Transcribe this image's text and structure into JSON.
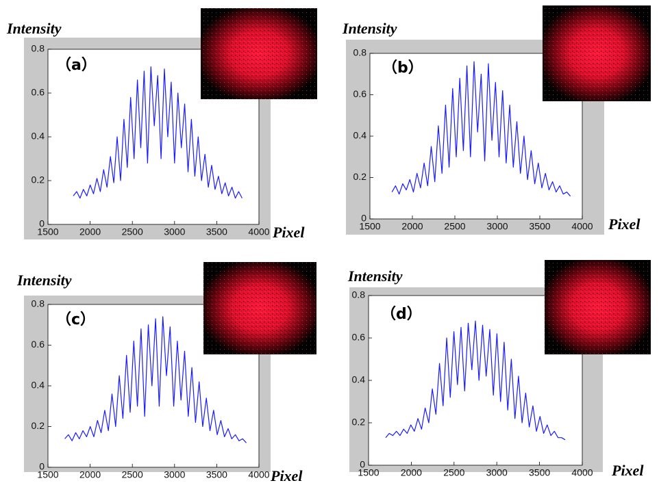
{
  "chart_data": [
    {
      "type": "line",
      "annotation": "（a）",
      "x_label": "Pixel",
      "y_label": "Intensity",
      "xlim": [
        1500,
        4000
      ],
      "ylim": [
        0,
        0.8
      ],
      "xticks": [
        1500,
        2000,
        2500,
        3000,
        3500,
        4000
      ],
      "yticks": [
        0,
        0.2,
        0.4,
        0.6,
        0.8
      ],
      "color": "#1a1aff",
      "x": [
        1800,
        1840,
        1880,
        1920,
        1960,
        2000,
        2040,
        2080,
        2120,
        2160,
        2200,
        2240,
        2280,
        2320,
        2360,
        2400,
        2440,
        2480,
        2520,
        2560,
        2600,
        2640,
        2680,
        2720,
        2760,
        2800,
        2840,
        2880,
        2920,
        2960,
        3000,
        3040,
        3080,
        3120,
        3160,
        3200,
        3240,
        3280,
        3320,
        3360,
        3400,
        3440,
        3480,
        3520,
        3560,
        3600,
        3640,
        3680,
        3720,
        3760,
        3800
      ],
      "values": [
        0.13,
        0.15,
        0.12,
        0.16,
        0.13,
        0.18,
        0.14,
        0.21,
        0.15,
        0.25,
        0.17,
        0.31,
        0.19,
        0.4,
        0.2,
        0.48,
        0.26,
        0.58,
        0.3,
        0.66,
        0.35,
        0.7,
        0.28,
        0.72,
        0.45,
        0.68,
        0.3,
        0.71,
        0.4,
        0.65,
        0.28,
        0.6,
        0.35,
        0.55,
        0.24,
        0.48,
        0.22,
        0.4,
        0.2,
        0.32,
        0.17,
        0.27,
        0.16,
        0.22,
        0.14,
        0.19,
        0.13,
        0.17,
        0.12,
        0.15,
        0.12
      ]
    },
    {
      "type": "line",
      "annotation": "（b）",
      "x_label": "Pixel",
      "y_label": "Intensity",
      "xlim": [
        1500,
        4000
      ],
      "ylim": [
        0,
        0.8
      ],
      "xticks": [
        1500,
        2000,
        2500,
        3000,
        3500,
        4000
      ],
      "yticks": [
        0,
        0.2,
        0.4,
        0.6,
        0.8
      ],
      "color": "#1a1aff",
      "x": [
        1760,
        1802,
        1844,
        1886,
        1928,
        1970,
        2012,
        2054,
        2096,
        2138,
        2180,
        2222,
        2264,
        2306,
        2348,
        2390,
        2432,
        2474,
        2516,
        2558,
        2600,
        2642,
        2684,
        2726,
        2768,
        2810,
        2852,
        2894,
        2936,
        2978,
        3020,
        3062,
        3104,
        3146,
        3188,
        3230,
        3272,
        3314,
        3356,
        3398,
        3440,
        3482,
        3524,
        3566,
        3608,
        3650,
        3692,
        3734,
        3776,
        3818,
        3860
      ],
      "values": [
        0.13,
        0.16,
        0.12,
        0.17,
        0.14,
        0.19,
        0.13,
        0.22,
        0.15,
        0.27,
        0.16,
        0.35,
        0.18,
        0.45,
        0.22,
        0.55,
        0.25,
        0.63,
        0.3,
        0.68,
        0.33,
        0.74,
        0.3,
        0.76,
        0.42,
        0.7,
        0.28,
        0.75,
        0.38,
        0.66,
        0.3,
        0.62,
        0.27,
        0.55,
        0.25,
        0.47,
        0.22,
        0.4,
        0.19,
        0.33,
        0.17,
        0.27,
        0.15,
        0.22,
        0.14,
        0.18,
        0.13,
        0.16,
        0.12,
        0.13,
        0.11
      ]
    },
    {
      "type": "line",
      "annotation": "（c）",
      "x_label": "Pixel",
      "y_label": "Intensity",
      "xlim": [
        1500,
        4000
      ],
      "ylim": [
        0,
        0.8
      ],
      "xticks": [
        1500,
        2000,
        2500,
        3000,
        3500,
        4000
      ],
      "yticks": [
        0,
        0.2,
        0.4,
        0.6,
        0.8
      ],
      "color": "#1a1aff",
      "x": [
        1700,
        1743,
        1786,
        1829,
        1872,
        1915,
        1958,
        2001,
        2044,
        2087,
        2130,
        2173,
        2216,
        2259,
        2302,
        2345,
        2388,
        2431,
        2474,
        2517,
        2560,
        2603,
        2646,
        2689,
        2732,
        2775,
        2818,
        2861,
        2904,
        2947,
        2990,
        3033,
        3076,
        3119,
        3162,
        3205,
        3248,
        3291,
        3334,
        3377,
        3420,
        3463,
        3506,
        3549,
        3592,
        3635,
        3678,
        3721,
        3764,
        3807,
        3850
      ],
      "values": [
        0.14,
        0.16,
        0.13,
        0.17,
        0.14,
        0.18,
        0.15,
        0.2,
        0.15,
        0.23,
        0.17,
        0.28,
        0.18,
        0.36,
        0.2,
        0.45,
        0.24,
        0.55,
        0.27,
        0.62,
        0.3,
        0.68,
        0.25,
        0.7,
        0.4,
        0.73,
        0.3,
        0.74,
        0.45,
        0.69,
        0.3,
        0.62,
        0.33,
        0.57,
        0.25,
        0.49,
        0.22,
        0.42,
        0.2,
        0.34,
        0.18,
        0.28,
        0.16,
        0.23,
        0.15,
        0.19,
        0.14,
        0.16,
        0.13,
        0.14,
        0.12
      ]
    },
    {
      "type": "line",
      "annotation": "（d）",
      "x_label": "Pixel",
      "y_label": "Intensity",
      "xlim": [
        1500,
        4000
      ],
      "ylim": [
        0,
        0.8
      ],
      "xticks": [
        1500,
        2000,
        2500,
        3000,
        3500,
        4000
      ],
      "yticks": [
        0,
        0.2,
        0.4,
        0.6,
        0.8
      ],
      "color": "#1a1aff",
      "x": [
        1700,
        1742,
        1784,
        1826,
        1868,
        1910,
        1952,
        1994,
        2036,
        2078,
        2120,
        2162,
        2204,
        2246,
        2288,
        2330,
        2372,
        2414,
        2456,
        2498,
        2540,
        2582,
        2624,
        2666,
        2708,
        2750,
        2792,
        2834,
        2876,
        2918,
        2960,
        3002,
        3044,
        3086,
        3128,
        3170,
        3212,
        3254,
        3296,
        3338,
        3380,
        3422,
        3464,
        3506,
        3548,
        3590,
        3632,
        3674,
        3716,
        3758,
        3800
      ],
      "values": [
        0.13,
        0.15,
        0.14,
        0.16,
        0.14,
        0.17,
        0.15,
        0.19,
        0.16,
        0.22,
        0.17,
        0.27,
        0.2,
        0.36,
        0.24,
        0.48,
        0.28,
        0.6,
        0.32,
        0.63,
        0.38,
        0.65,
        0.35,
        0.67,
        0.45,
        0.68,
        0.4,
        0.66,
        0.42,
        0.64,
        0.33,
        0.62,
        0.3,
        0.58,
        0.26,
        0.5,
        0.22,
        0.42,
        0.2,
        0.34,
        0.18,
        0.28,
        0.16,
        0.23,
        0.15,
        0.19,
        0.14,
        0.16,
        0.13,
        0.13,
        0.12
      ]
    }
  ]
}
